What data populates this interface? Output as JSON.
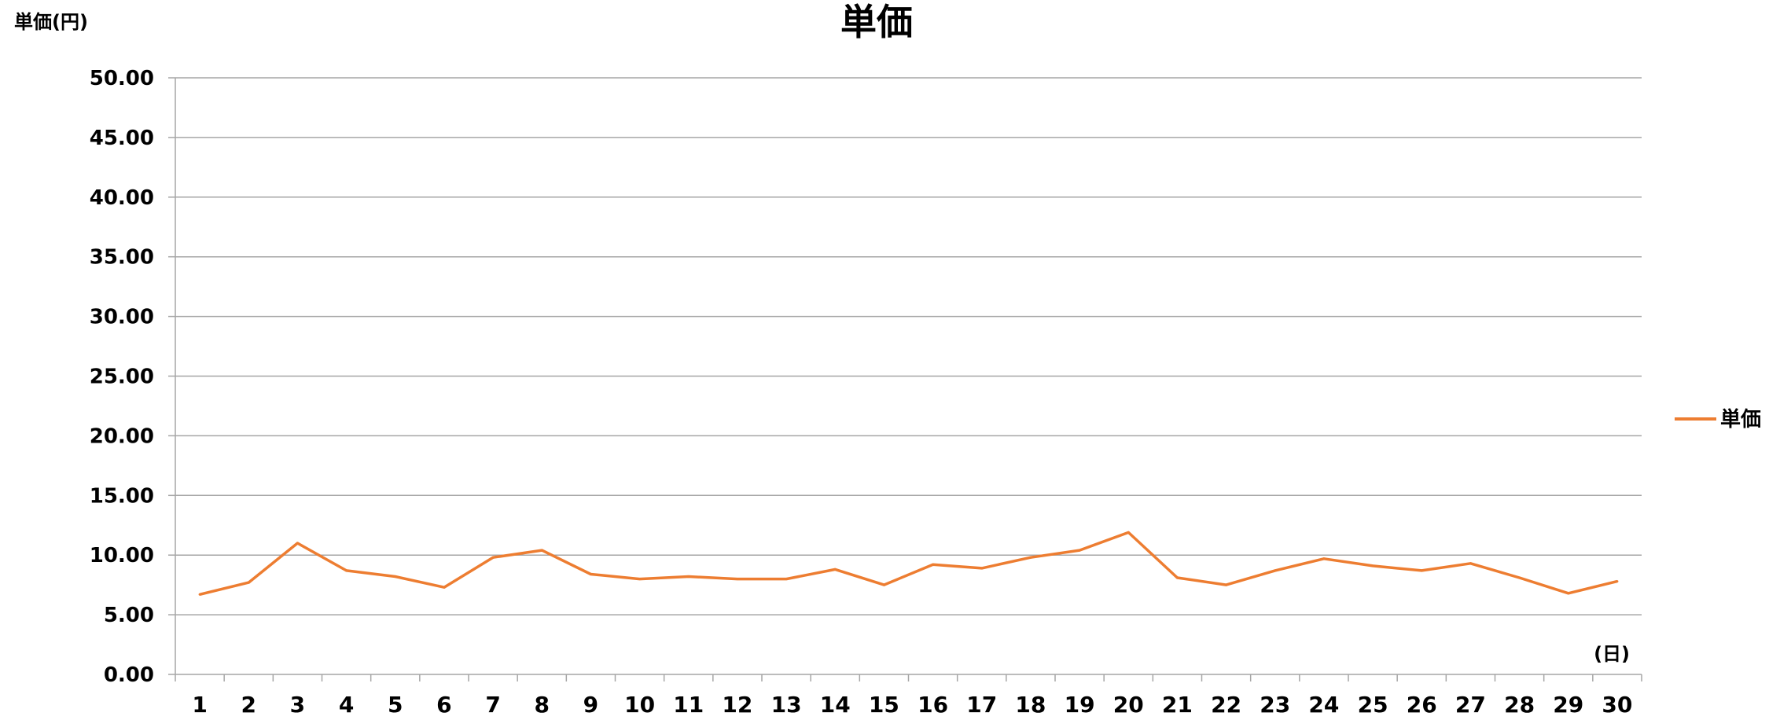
{
  "chart_data": {
    "type": "line",
    "title": "単価",
    "ylabel": "単価(円)",
    "xlabel": "(日)",
    "ylim": [
      0,
      50
    ],
    "y_tick_step": 5,
    "y_tick_labels": [
      "0.00",
      "5.00",
      "10.00",
      "15.00",
      "20.00",
      "25.00",
      "30.00",
      "35.00",
      "40.00",
      "45.00",
      "50.00"
    ],
    "grid": true,
    "legend_position": "right",
    "categories": [
      "1",
      "2",
      "3",
      "4",
      "5",
      "6",
      "7",
      "8",
      "9",
      "10",
      "11",
      "12",
      "13",
      "14",
      "15",
      "16",
      "17",
      "18",
      "19",
      "20",
      "21",
      "22",
      "23",
      "24",
      "25",
      "26",
      "27",
      "28",
      "29",
      "30"
    ],
    "series": [
      {
        "name": "単価",
        "color": "#ed7d31",
        "values": [
          6.7,
          7.7,
          11.0,
          8.7,
          8.2,
          7.3,
          9.8,
          10.4,
          8.4,
          8.0,
          8.2,
          8.0,
          8.0,
          8.8,
          7.5,
          9.2,
          8.9,
          9.8,
          10.4,
          11.9,
          8.1,
          7.5,
          8.7,
          9.7,
          9.1,
          8.7,
          9.3,
          8.1,
          6.8,
          7.8
        ]
      }
    ]
  }
}
